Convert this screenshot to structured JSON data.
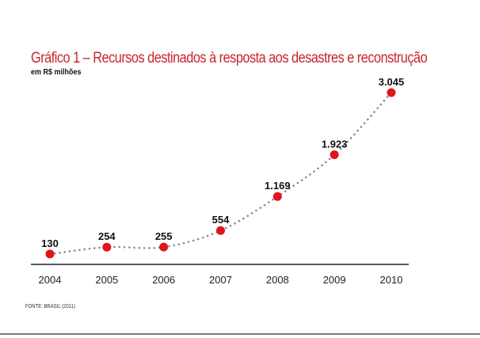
{
  "chart_data": {
    "type": "line",
    "title": "Gráfico 1 – Recursos destinados à resposta aos desastres e reconstrução",
    "subtitle": "em R$ milhões",
    "xlabel": "",
    "ylabel": "",
    "categories": [
      "2004",
      "2005",
      "2006",
      "2007",
      "2008",
      "2009",
      "2010"
    ],
    "values": [
      130,
      254,
      255,
      554,
      1169,
      1923,
      3045
    ],
    "data_labels": [
      "130",
      "254",
      "255",
      "554",
      "1.169",
      "1.923",
      "3.045"
    ],
    "ylim": [
      0,
      3045
    ],
    "grid": false,
    "legend": "none",
    "line_style": "dotted",
    "source": "FONTE: BRASIL (2011)"
  },
  "colors": {
    "title": "#c9252e",
    "marker": "#e0141c",
    "line": "#8c8c8c",
    "axis": "#5a5a66"
  }
}
